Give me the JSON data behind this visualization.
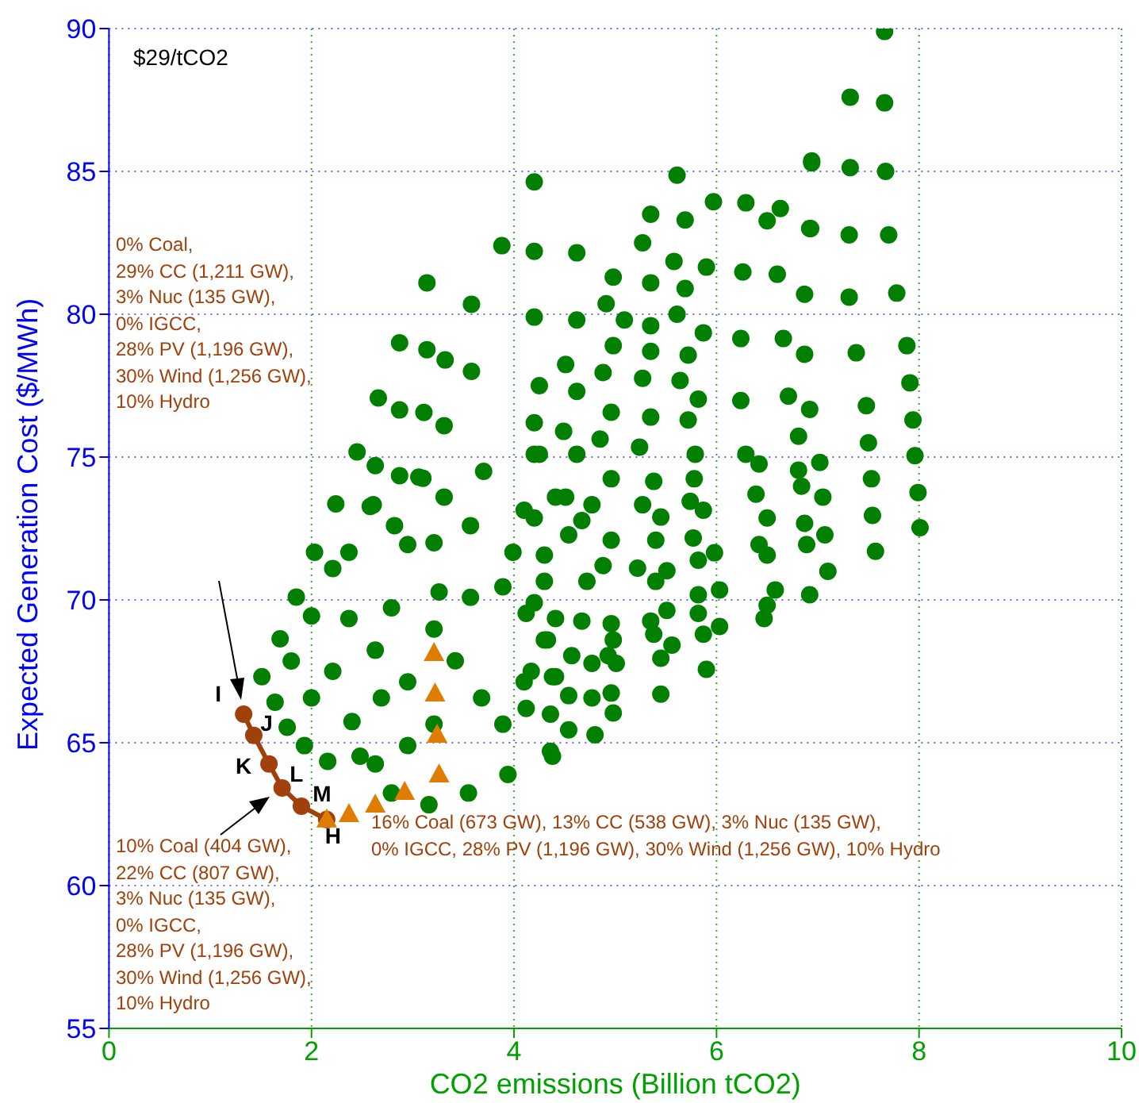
{
  "chart_data": {
    "type": "scatter",
    "xlabel": "CO2 emissions (Billion tCO2)",
    "ylabel": "Expected Generation Cost ($/MWh)",
    "xlim": [
      0,
      10
    ],
    "ylim": [
      55,
      90
    ],
    "xticks": [
      0,
      2,
      4,
      6,
      8,
      10
    ],
    "yticks": [
      55,
      60,
      65,
      70,
      75,
      80,
      85,
      90
    ],
    "grid": true,
    "series": [
      {
        "marker": "circle",
        "color": "#007f00",
        "x": [
          2.45,
          2.63,
          2.87,
          3.1,
          3.7,
          4.2,
          2.61,
          2.03,
          2.21,
          1.85,
          2.37,
          2.95,
          3.21,
          3.57,
          3.99,
          2.0,
          1.69,
          1.8,
          1.51,
          1.64,
          1.76,
          1.93,
          2.16,
          2.21,
          2.4,
          2.48,
          2.63,
          2.79,
          3.16,
          3.55,
          3.94,
          2.95,
          2.69,
          2.95,
          3.21,
          3.42,
          3.68,
          3.89,
          4.1,
          4.36,
          4.41,
          2.63,
          2.37,
          2.79,
          3.26,
          3.57,
          3.89,
          4.2,
          4.3,
          4.51,
          4.1,
          3.31,
          2.0,
          3.21,
          5.61,
          6.94,
          4.2,
          5.35,
          5.69,
          5.97,
          6.29,
          6.5,
          6.63,
          6.92,
          4.2,
          4.62,
          5.27,
          5.58,
          5.9,
          6.26,
          6.6,
          6.87,
          4.98,
          5.35,
          5.69,
          4.91,
          4.2,
          4.62,
          5.09,
          5.35,
          5.61,
          5.87,
          6.24,
          6.66,
          6.87,
          4.98,
          5.35,
          5.72,
          4.51,
          4.88,
          5.27,
          5.64,
          5.82,
          6.24,
          6.71,
          6.92,
          4.62,
          4.25,
          4.96,
          5.35,
          5.72,
          6.81,
          4.2,
          4.49,
          4.85,
          5.24,
          5.79,
          6.29,
          6.42,
          6.81,
          7.02,
          4.62,
          4.25,
          4.96,
          5.38,
          5.78,
          6.39,
          6.84,
          7.05,
          4.41,
          4.77,
          5.27,
          5.74,
          4.2,
          4.67,
          5.45,
          5.87,
          6.5,
          6.87,
          4.54,
          4.96,
          5.4,
          5.77,
          6.42,
          7.07,
          4.3,
          4.88,
          5.22,
          5.51,
          5.82,
          5.98,
          6.5,
          6.89,
          4.72,
          5.4,
          5.82,
          6.03,
          6.58,
          6.92,
          7.1,
          4.3,
          4.12,
          4.41,
          4.67,
          4.96,
          5.35,
          5.51,
          5.82,
          6.03,
          6.5,
          6.47,
          4.33,
          4.98,
          5.38,
          5.87,
          5.56,
          4.57,
          4.93,
          5.45,
          4.17,
          4.38,
          4.77,
          5.01,
          5.9,
          4.54,
          4.96,
          5.45,
          4.12,
          4.36,
          4.77,
          4.98,
          4.54,
          4.8,
          4.38,
          7.66,
          7.32,
          7.66,
          6.94,
          7.32,
          7.67,
          6.93,
          7.31,
          7.7,
          7.31,
          7.78,
          7.38,
          7.88,
          7.91,
          7.48,
          7.94,
          7.5,
          7.96,
          7.53,
          7.99,
          7.54,
          8.01,
          7.57,
          3.14,
          3.88,
          3.58,
          2.87,
          3.14,
          3.32,
          3.58,
          2.66,
          2.87,
          3.11,
          3.31,
          2.82,
          2.24,
          2.58,
          3.06
        ],
        "values": [
          75.18,
          74.7,
          74.35,
          74.26,
          74.5,
          75.1,
          73.33,
          71.67,
          71.1,
          70.1,
          71.67,
          71.94,
          72.0,
          72.6,
          71.67,
          69.44,
          68.64,
          67.86,
          67.31,
          66.42,
          65.54,
          64.9,
          64.35,
          67.5,
          65.74,
          64.53,
          64.26,
          63.24,
          62.83,
          63.24,
          63.89,
          64.9,
          66.57,
          67.13,
          68.98,
          67.87,
          66.57,
          65.65,
          67.13,
          64.7,
          67.31,
          68.24,
          69.35,
          69.72,
          70.28,
          70.09,
          70.46,
          69.9,
          68.6,
          73.6,
          73.14,
          73.6,
          66.57,
          65.65,
          84.87,
          85.3,
          84.63,
          83.5,
          83.3,
          83.94,
          83.9,
          83.27,
          83.7,
          83.0,
          82.2,
          82.15,
          82.5,
          81.85,
          81.65,
          81.48,
          81.4,
          80.7,
          81.3,
          81.1,
          80.9,
          80.37,
          79.9,
          79.8,
          79.8,
          79.6,
          80.0,
          79.35,
          79.15,
          79.15,
          78.6,
          78.9,
          78.7,
          78.57,
          78.24,
          77.96,
          77.76,
          77.68,
          77.03,
          76.98,
          77.13,
          76.67,
          77.3,
          77.5,
          76.57,
          76.4,
          76.3,
          75.73,
          76.2,
          75.9,
          75.63,
          75.35,
          75.1,
          75.1,
          74.76,
          74.54,
          74.81,
          75.1,
          75.1,
          74.24,
          74.15,
          74.24,
          73.7,
          73.98,
          73.6,
          73.6,
          73.33,
          73.33,
          73.45,
          72.87,
          72.78,
          72.9,
          73.14,
          72.87,
          72.68,
          72.28,
          72.09,
          72.09,
          72.17,
          71.94,
          72.28,
          71.57,
          71.2,
          71.11,
          71.02,
          71.39,
          71.65,
          71.57,
          71.94,
          70.65,
          70.65,
          70.18,
          70.35,
          70.35,
          70.18,
          71.0,
          70.65,
          69.53,
          69.35,
          69.26,
          69.17,
          69.26,
          69.63,
          69.53,
          69.07,
          69.81,
          69.35,
          68.6,
          68.6,
          68.8,
          68.8,
          68.42,
          68.05,
          68.05,
          67.96,
          67.5,
          67.31,
          67.78,
          67.78,
          67.57,
          66.65,
          66.74,
          66.7,
          66.2,
          66.0,
          66.57,
          66.04,
          65.45,
          65.28,
          64.53,
          89.9,
          87.6,
          87.4,
          85.37,
          85.13,
          85.0,
          83.0,
          82.78,
          82.78,
          80.6,
          80.74,
          78.65,
          78.9,
          77.6,
          76.8,
          76.3,
          75.5,
          75.05,
          74.24,
          73.76,
          72.96,
          72.53,
          71.7,
          81.1,
          82.4,
          80.35,
          79.0,
          78.76,
          78.4,
          78.0,
          77.07,
          76.65,
          76.56,
          76.1,
          72.6,
          73.36,
          73.27,
          74.3
        ]
      },
      {
        "marker": "triangle",
        "color": "#e07c00",
        "x": [
          2.15,
          2.37,
          2.63,
          2.92,
          3.26,
          3.24,
          3.22,
          3.21
        ],
        "values": [
          62.31,
          62.5,
          62.83,
          63.28,
          63.89,
          65.28,
          66.72,
          68.14
        ]
      },
      {
        "type": "line",
        "marker": "circle",
        "color": "#a0400a",
        "x": [
          1.33,
          1.43,
          1.58,
          1.71,
          1.9,
          2.15
        ],
        "values": [
          66.0,
          65.26,
          64.26,
          63.42,
          62.78,
          62.31
        ]
      }
    ],
    "annotations": [
      "$29/tCO2",
      "0% Coal,\n29% CC (1,211 GW),\n3% Nuc (135 GW),\n0% IGCC,\n28% PV (1,196 GW),\n30% Wind (1,256 GW),\n10% Hydro",
      "10% Coal (404 GW),\n22% CC (807 GW),\n3% Nuc (135 GW),\n0% IGCC,\n28% PV (1,196 GW),\n30% Wind (1,256 GW),\n10% Hydro",
      "16% Coal (673 GW), 13% CC (538 GW), 3% Nuc (135 GW),\n0% IGCC, 28% PV (1,196 GW), 30% Wind (1,256 GW), 10% Hydro",
      {
        "text": "I",
        "x": 1.33,
        "y": 66.0
      },
      {
        "text": "J",
        "x": 1.43,
        "y": 65.26
      },
      {
        "text": "K",
        "x": 1.58,
        "y": 64.26
      },
      {
        "text": "L",
        "x": 1.71,
        "y": 63.42
      },
      {
        "text": "M",
        "x": 1.9,
        "y": 62.78
      },
      {
        "text": "H",
        "x": 2.15,
        "y": 62.31
      }
    ]
  }
}
